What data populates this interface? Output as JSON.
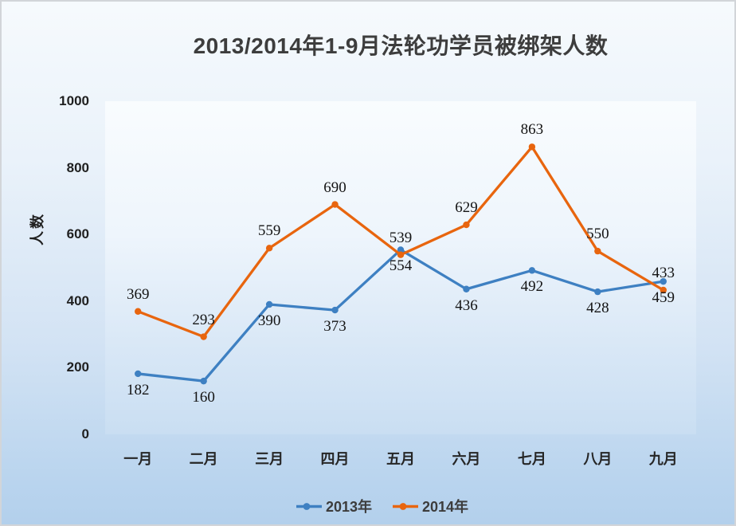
{
  "chart_data": {
    "type": "line",
    "title": "2013/2014年1-9月法轮功学员被绑架人数",
    "ylabel": "人数",
    "xlabel": "",
    "categories": [
      "一月",
      "二月",
      "三月",
      "四月",
      "五月",
      "六月",
      "七月",
      "八月",
      "九月"
    ],
    "series": [
      {
        "name": "2013年",
        "color": "#3E80C2",
        "values": [
          182,
          160,
          390,
          373,
          554,
          436,
          492,
          428,
          459
        ],
        "label_position": "below"
      },
      {
        "name": "2014年",
        "color": "#E8650E",
        "values": [
          369,
          293,
          559,
          690,
          539,
          629,
          863,
          550,
          433
        ],
        "label_position": "above"
      }
    ],
    "ylim": [
      0,
      1000
    ],
    "yticks": [
      0,
      200,
      400,
      600,
      800,
      1000
    ],
    "grid": false,
    "marker": "circle",
    "legend_position": "bottom"
  },
  "styles": {
    "background_top": "#f6fafd",
    "background_bottom": "#b3d0ec",
    "plot_top": "#f9fcfe",
    "plot_bottom": "#c9def2",
    "series_2013_color": "#3E80C2",
    "series_2014_color": "#E8650E",
    "title_color": "#3d3d3d",
    "tick_color": "#1f1f1f",
    "data_label_color": "#141414"
  }
}
